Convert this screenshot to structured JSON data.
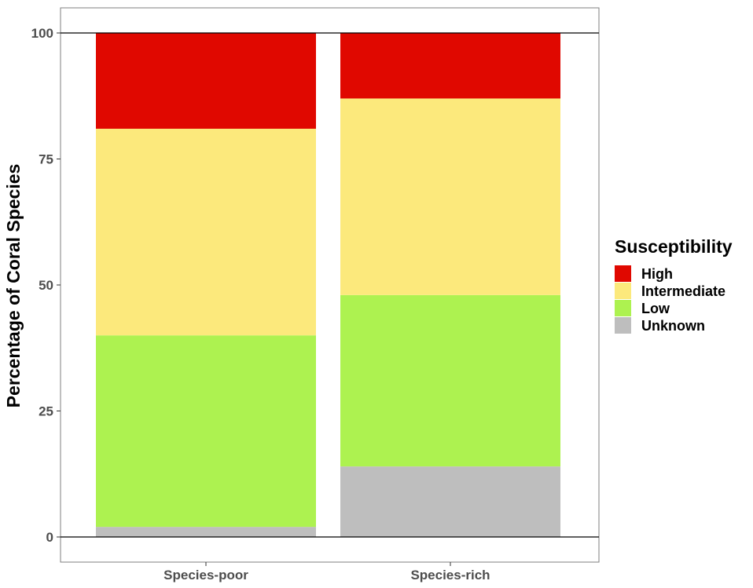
{
  "chart_data": {
    "type": "bar",
    "stacked": true,
    "categories": [
      "Species-poor",
      "Species-rich"
    ],
    "ylabel": "Percentage of Coral Species",
    "xlabel": "",
    "ylim": [
      0,
      105
    ],
    "yticks": [
      0,
      25,
      50,
      75,
      100
    ],
    "grid": false,
    "reference_lines": [
      0,
      100
    ],
    "legend": {
      "title": "Susceptibility",
      "position": "right",
      "entries": [
        "High",
        "Intermediate",
        "Low",
        "Unknown"
      ]
    },
    "series": [
      {
        "name": "Unknown",
        "color": "#bebebe",
        "values": [
          2,
          14
        ]
      },
      {
        "name": "Low",
        "color": "#adf250",
        "values": [
          38,
          34
        ]
      },
      {
        "name": "Intermediate",
        "color": "#fce97c",
        "values": [
          41,
          39
        ]
      },
      {
        "name": "High",
        "color": "#e00800",
        "values": [
          19,
          13
        ]
      }
    ]
  }
}
